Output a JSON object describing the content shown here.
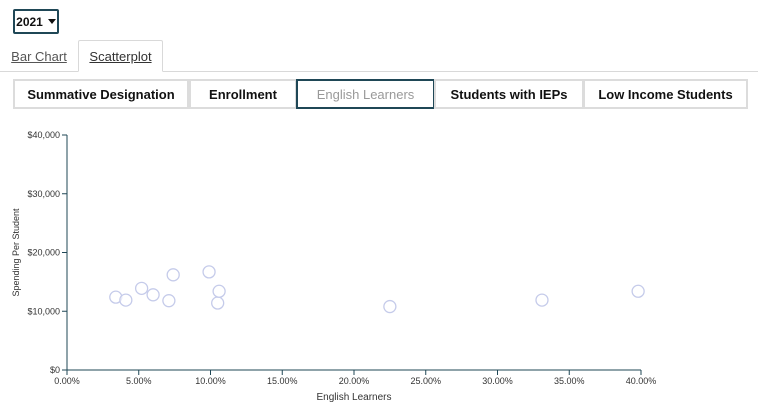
{
  "year_select": {
    "value": "2021"
  },
  "view_tabs": [
    {
      "label": "Bar Chart",
      "selected": false
    },
    {
      "label": "Scatterplot",
      "selected": true
    }
  ],
  "metric_tabs": [
    {
      "label": "Summative Designation",
      "selected": false
    },
    {
      "label": "Enrollment",
      "selected": false
    },
    {
      "label": "English Learners",
      "selected": true
    },
    {
      "label": "Students with IEPs",
      "selected": false
    },
    {
      "label": "Low Income Students",
      "selected": false
    }
  ],
  "colors": {
    "accent": "#1f4756",
    "point_stroke": "#c5cbea",
    "axis": "#1f4756"
  },
  "chart_data": {
    "type": "scatter",
    "xlabel": "English Learners",
    "ylabel": "Spending Per Student",
    "xlim": [
      0,
      40
    ],
    "ylim": [
      0,
      40000
    ],
    "x_ticks": [
      0,
      5,
      10,
      15,
      20,
      25,
      30,
      35,
      40
    ],
    "x_tick_labels": [
      "0.00%",
      "5.00%",
      "10.00%",
      "15.00%",
      "20.00%",
      "25.00%",
      "30.00%",
      "35.00%",
      "40.00%"
    ],
    "y_ticks": [
      0,
      10000,
      20000,
      30000,
      40000
    ],
    "y_tick_labels": [
      "$0",
      "$10,000",
      "$20,000",
      "$30,000",
      "$40,000"
    ],
    "grid": false,
    "points": [
      {
        "x": 3.4,
        "y": 12400
      },
      {
        "x": 4.1,
        "y": 11900
      },
      {
        "x": 5.2,
        "y": 13900
      },
      {
        "x": 6.0,
        "y": 12800
      },
      {
        "x": 7.1,
        "y": 11800
      },
      {
        "x": 7.4,
        "y": 16200
      },
      {
        "x": 9.9,
        "y": 16700
      },
      {
        "x": 10.5,
        "y": 11400
      },
      {
        "x": 10.6,
        "y": 13400
      },
      {
        "x": 22.5,
        "y": 10800
      },
      {
        "x": 33.1,
        "y": 11900
      },
      {
        "x": 39.8,
        "y": 13400
      }
    ]
  }
}
